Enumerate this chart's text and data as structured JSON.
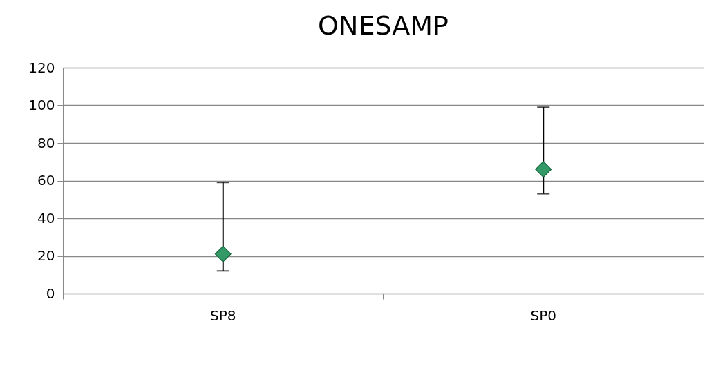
{
  "chart_data": {
    "type": "scatter",
    "title": "ONESAMP",
    "categories": [
      "SP8",
      "SP0"
    ],
    "series": [
      {
        "color": "#339966",
        "values": [
          21,
          66
        ],
        "errors": [
          [
            12,
            59
          ],
          [
            53,
            99
          ]
        ]
      }
    ],
    "ylim": [
      0,
      120
    ],
    "yticks": [
      0,
      20,
      40,
      60,
      80,
      100,
      120
    ],
    "grid": "y",
    "legend": false,
    "marker": "diamond"
  }
}
